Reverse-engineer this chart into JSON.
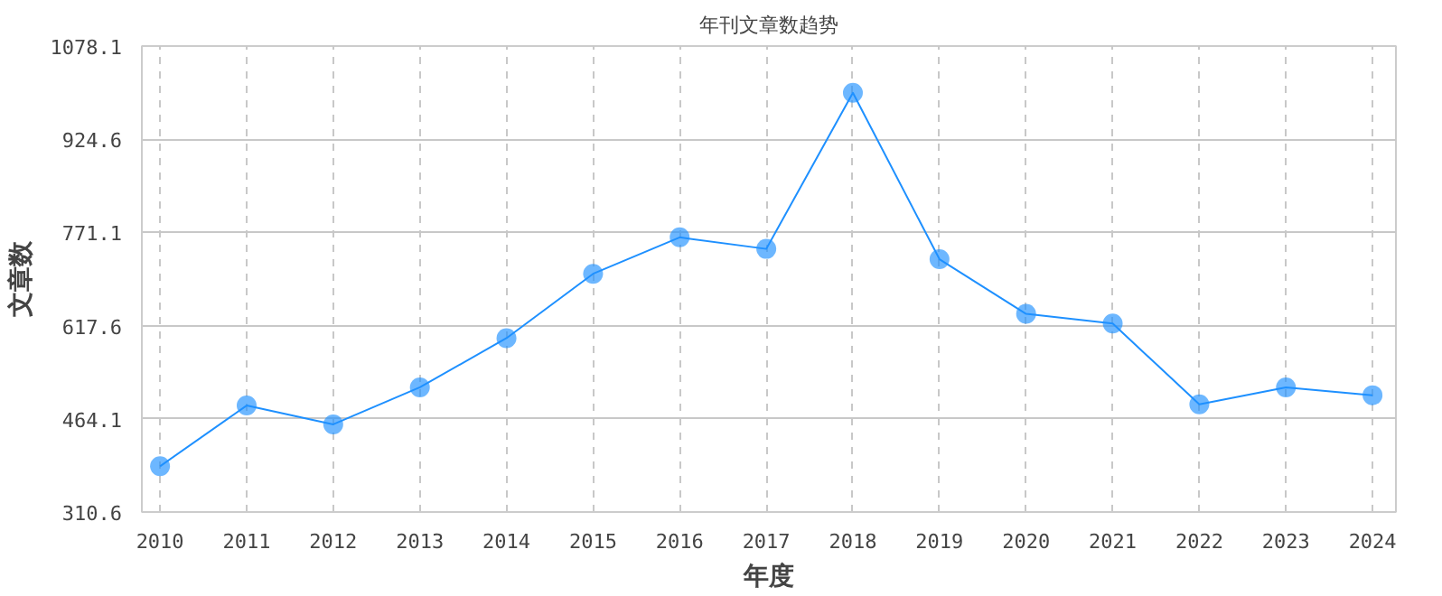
{
  "chart_data": {
    "type": "line",
    "title": "年刊文章数趋势",
    "xlabel": "年度",
    "ylabel": "文章数",
    "x": [
      2010,
      2011,
      2012,
      2013,
      2014,
      2015,
      2016,
      2017,
      2018,
      2019,
      2020,
      2021,
      2022,
      2023,
      2024
    ],
    "series": [
      {
        "color": "#1e90ff",
        "values": [
          386,
          486,
          455,
          516,
          597,
          703,
          763,
          744,
          1001,
          727,
          637,
          621,
          488,
          516,
          503
        ]
      }
    ],
    "marker": "circle",
    "xlim": [
      2009.79,
      2024.27
    ],
    "xticks": [
      2010,
      2011,
      2012,
      2013,
      2014,
      2015,
      2016,
      2017,
      2018,
      2019,
      2020,
      2021,
      2022,
      2023,
      2024
    ],
    "ylim": [
      310.6,
      1078.1
    ],
    "yticks": [
      310.6,
      464.1,
      617.6,
      771.1,
      924.6,
      1078.1
    ],
    "grid": true
  }
}
